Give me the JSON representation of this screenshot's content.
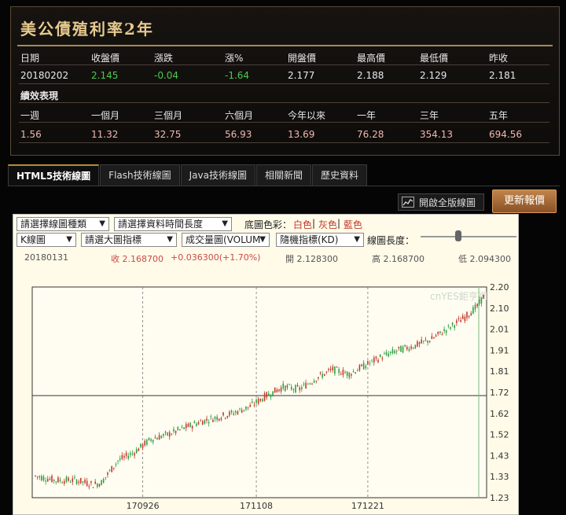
{
  "quote": {
    "title": "美公債殖利率2年",
    "headers": [
      "日期",
      "收盤價",
      "漲跌",
      "漲%",
      "開盤價",
      "最高價",
      "最低價",
      "昨收"
    ],
    "values": [
      "20180202",
      "2.145",
      "-0.04",
      "-1.64",
      "2.177",
      "2.188",
      "2.129",
      "2.181"
    ],
    "performance_label": "績效表現",
    "perf_headers": [
      "一週",
      "一個月",
      "三個月",
      "六個月",
      "今年以來",
      "一年",
      "三年",
      "五年"
    ],
    "perf_values": [
      "1.56",
      "11.32",
      "32.75",
      "56.93",
      "13.69",
      "76.28",
      "354.13",
      "694.56"
    ]
  },
  "tabs": [
    "HTML5技術線圖",
    "Flash技術線圖",
    "Java技術線圖",
    "相關新聞",
    "歷史資料"
  ],
  "buttons": {
    "fullscreen": "開啟全版線圖",
    "refresh": "更新報價"
  },
  "controls": {
    "chart_type": "請選擇線圖種類",
    "period": "請選擇資料時間長度",
    "color_label": "底圖色彩：",
    "colors": [
      "白色",
      "灰色",
      "藍色"
    ],
    "kline": "K線圖",
    "main_indicator": "請選大圖指標",
    "volume": "成交量圖(VOLUM",
    "stochastic": "隨機指標(KD)",
    "line_length": "線圖長度："
  },
  "ohlc_readout": {
    "date": "20180131",
    "close": "收 2.168700",
    "change": "+0.036300(+1.70%)",
    "open": "開 2.128300",
    "high": "高 2.168700",
    "low": "低 2.094300"
  },
  "chart_data": {
    "type": "candlestick",
    "watermark": "cnYES鉅亨網",
    "y_ticks": [
      "2.20",
      "2.10",
      "2.01",
      "1.91",
      "1.81",
      "1.72",
      "1.62",
      "1.52",
      "1.43",
      "1.33",
      "1.23"
    ],
    "ylim": [
      1.23,
      2.2
    ],
    "x_ticks": [
      "170926",
      "171108",
      "171221"
    ],
    "crosshair_y": 1.7,
    "trend": [
      [
        0,
        1.33
      ],
      [
        10,
        1.31
      ],
      [
        20,
        1.31
      ],
      [
        28,
        1.29
      ],
      [
        32,
        1.3
      ],
      [
        40,
        1.4
      ],
      [
        48,
        1.44
      ],
      [
        56,
        1.5
      ],
      [
        64,
        1.52
      ],
      [
        72,
        1.55
      ],
      [
        80,
        1.58
      ],
      [
        88,
        1.6
      ],
      [
        96,
        1.62
      ],
      [
        104,
        1.65
      ],
      [
        112,
        1.7
      ],
      [
        120,
        1.74
      ],
      [
        128,
        1.73
      ],
      [
        136,
        1.78
      ],
      [
        144,
        1.82
      ],
      [
        152,
        1.8
      ],
      [
        160,
        1.84
      ],
      [
        168,
        1.88
      ],
      [
        176,
        1.91
      ],
      [
        184,
        1.93
      ],
      [
        192,
        1.96
      ],
      [
        200,
        2.01
      ],
      [
        208,
        2.06
      ],
      [
        214,
        2.11
      ],
      [
        218,
        2.17
      ]
    ],
    "candle_count": 218
  }
}
